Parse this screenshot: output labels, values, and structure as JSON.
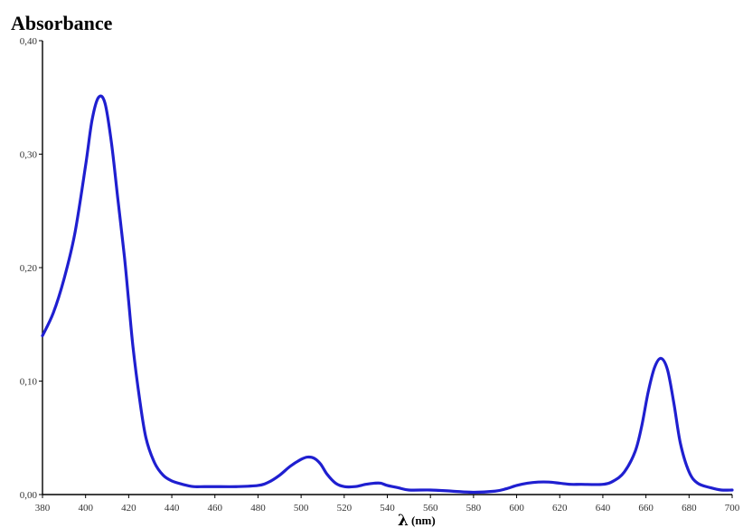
{
  "chart_data": {
    "type": "line",
    "ylabel": "Absorbance",
    "xlabel_symbol": "λ",
    "xlabel_unit": "(nm)",
    "xlim": [
      380,
      700
    ],
    "ylim": [
      0,
      0.4
    ],
    "x_ticks": [
      380,
      400,
      420,
      440,
      460,
      480,
      500,
      520,
      540,
      560,
      580,
      600,
      620,
      640,
      660,
      680,
      700
    ],
    "x_tick_labels": [
      "380",
      "400",
      "420",
      "440",
      "460",
      "480",
      "500",
      "520",
      "540",
      "560",
      "580",
      "600",
      "620",
      "640",
      "660",
      "680",
      "700"
    ],
    "y_ticks": [
      0,
      0.1,
      0.2,
      0.3,
      0.4
    ],
    "y_tick_labels": [
      "0,00",
      "0,10",
      "0,20",
      "0,30",
      "0,40"
    ],
    "grid": false,
    "color": "#1f1fd0",
    "series": [
      {
        "x": [
          380,
          385,
          390,
          395,
          400,
          403,
          406,
          409,
          412,
          415,
          418,
          420,
          422,
          425,
          428,
          432,
          436,
          440,
          445,
          450,
          455,
          460,
          470,
          480,
          485,
          490,
          495,
          500,
          503,
          506,
          509,
          512,
          516,
          520,
          525,
          530,
          534,
          537,
          540,
          545,
          550,
          560,
          570,
          580,
          590,
          595,
          600,
          605,
          610,
          615,
          620,
          625,
          630,
          640,
          645,
          650,
          655,
          658,
          661,
          664,
          667,
          670,
          673,
          676,
          680,
          684,
          690,
          695,
          700
        ],
        "y": [
          0.14,
          0.16,
          0.19,
          0.23,
          0.29,
          0.33,
          0.35,
          0.345,
          0.31,
          0.26,
          0.21,
          0.17,
          0.13,
          0.085,
          0.05,
          0.028,
          0.017,
          0.012,
          0.009,
          0.007,
          0.007,
          0.007,
          0.007,
          0.008,
          0.011,
          0.017,
          0.025,
          0.031,
          0.033,
          0.032,
          0.027,
          0.018,
          0.01,
          0.007,
          0.007,
          0.009,
          0.01,
          0.01,
          0.008,
          0.006,
          0.004,
          0.004,
          0.003,
          0.002,
          0.003,
          0.005,
          0.008,
          0.01,
          0.011,
          0.011,
          0.01,
          0.009,
          0.009,
          0.009,
          0.012,
          0.02,
          0.038,
          0.06,
          0.09,
          0.112,
          0.12,
          0.11,
          0.08,
          0.045,
          0.02,
          0.01,
          0.006,
          0.004,
          0.004
        ]
      }
    ]
  }
}
